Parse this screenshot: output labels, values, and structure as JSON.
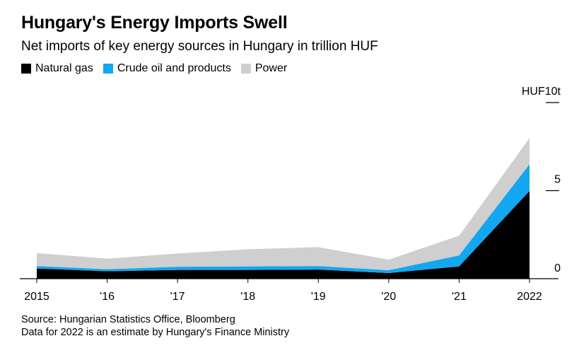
{
  "header": {
    "title": "Hungary's Energy Imports Swell",
    "subtitle": "Net imports of key energy sources in Hungary in trillion HUF"
  },
  "legend": {
    "items": [
      {
        "label": "Natural gas",
        "color": "#000000"
      },
      {
        "label": "Crude oil and products",
        "color": "#12a7f0"
      },
      {
        "label": "Power",
        "color": "#cfcfcf"
      }
    ]
  },
  "footer": {
    "source": "Source: Hungarian Statistics Office, Bloomberg",
    "note": "Data for 2022 is an estimate by Hungary's Finance Ministry"
  },
  "chart_data": {
    "type": "area",
    "stacked": true,
    "title": "Hungary's Energy Imports Swell",
    "subtitle": "Net imports of key energy sources in Hungary in trillion HUF",
    "x": [
      "2015",
      "'16",
      "'17",
      "'18",
      "'19",
      "'20",
      "'21",
      "2022"
    ],
    "series": [
      {
        "name": "Natural gas",
        "color": "#000000",
        "values": [
          0.58,
          0.42,
          0.5,
          0.5,
          0.52,
          0.32,
          0.7,
          4.98
        ]
      },
      {
        "name": "Crude oil and products",
        "color": "#12a7f0",
        "values": [
          0.14,
          0.12,
          0.18,
          0.2,
          0.2,
          0.16,
          0.62,
          1.52
        ]
      },
      {
        "name": "Power",
        "color": "#cfcfcf",
        "values": [
          0.73,
          0.6,
          0.75,
          0.97,
          1.07,
          0.6,
          1.12,
          1.48
        ]
      }
    ],
    "y_axis": {
      "unit_label": "HUF10t",
      "ticks": [
        "0",
        "5"
      ],
      "tick_values": [
        0,
        5,
        10
      ],
      "position": "right"
    },
    "ylim": [
      0,
      10
    ],
    "grid": false,
    "legend_position": "top-left"
  }
}
